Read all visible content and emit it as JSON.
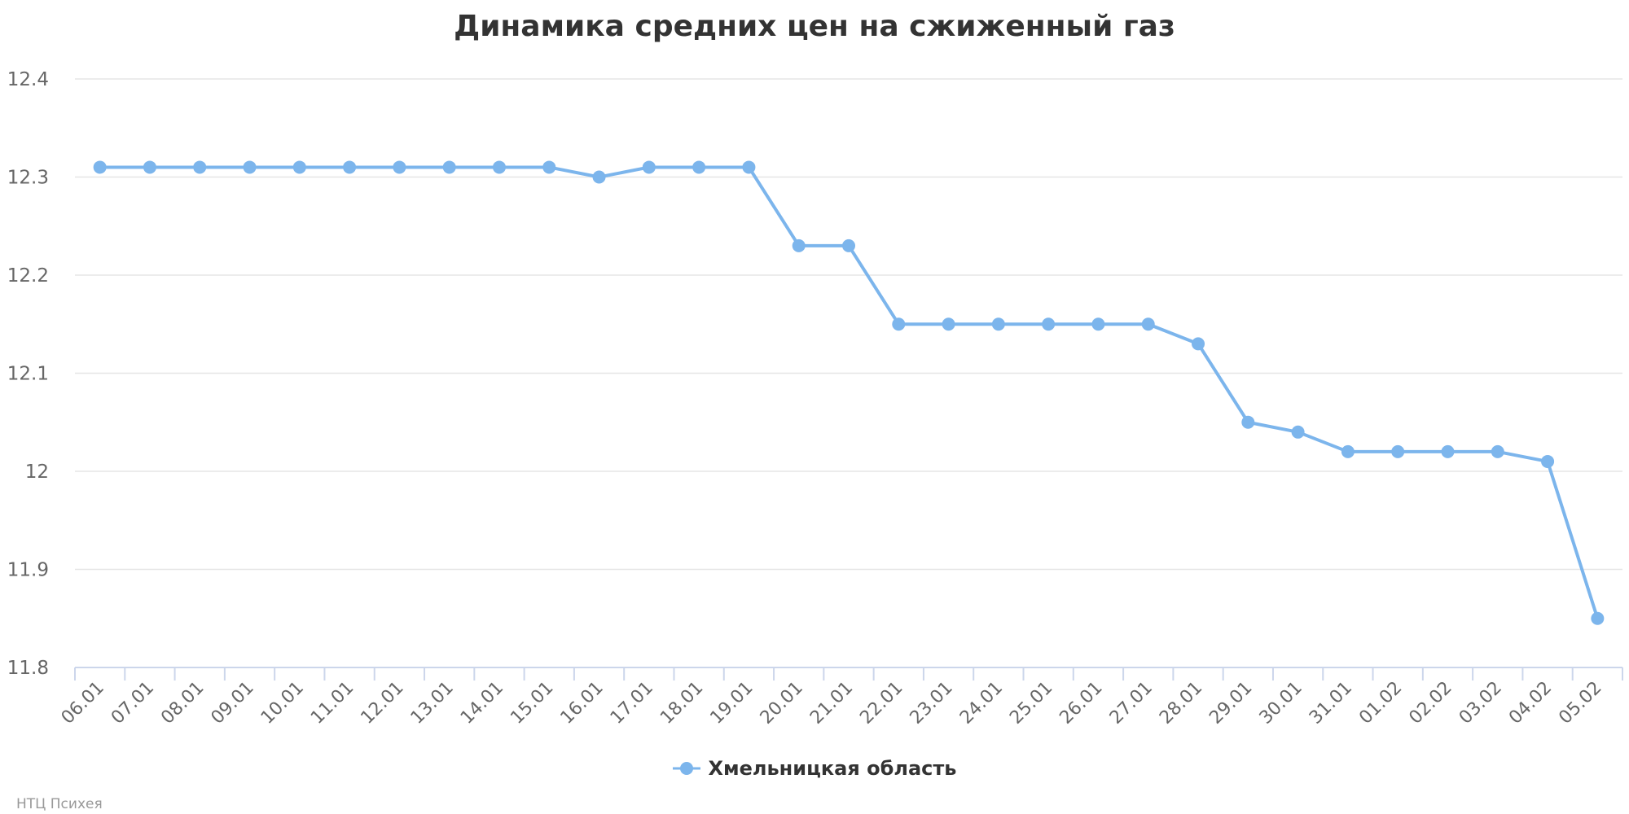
{
  "chart_data": {
    "type": "line",
    "title": "Динамика средних цен на сжиженный газ",
    "categories": [
      "06.01",
      "07.01",
      "08.01",
      "09.01",
      "10.01",
      "11.01",
      "12.01",
      "13.01",
      "14.01",
      "15.01",
      "16.01",
      "17.01",
      "18.01",
      "19.01",
      "20.01",
      "21.01",
      "22.01",
      "23.01",
      "24.01",
      "25.01",
      "26.01",
      "27.01",
      "28.01",
      "29.01",
      "30.01",
      "31.01",
      "01.02",
      "02.02",
      "03.02",
      "04.02",
      "05.02"
    ],
    "series": [
      {
        "name": "Хмельницкая область",
        "color": "#7cb5ec",
        "values": [
          12.31,
          12.31,
          12.31,
          12.31,
          12.31,
          12.31,
          12.31,
          12.31,
          12.31,
          12.31,
          12.3,
          12.31,
          12.31,
          12.31,
          12.23,
          12.23,
          12.15,
          12.15,
          12.15,
          12.15,
          12.15,
          12.15,
          12.13,
          12.05,
          12.04,
          12.02,
          12.02,
          12.02,
          12.02,
          12.01,
          11.85
        ]
      }
    ],
    "ylim": [
      11.8,
      12.4
    ],
    "yticks": [
      "11.8",
      "11.9",
      "12",
      "12.1",
      "12.2",
      "12.3",
      "12.4"
    ],
    "xlabel": "",
    "ylabel": "",
    "grid": true,
    "legend_position": "bottom-center"
  },
  "credits": "НТЦ Психея"
}
